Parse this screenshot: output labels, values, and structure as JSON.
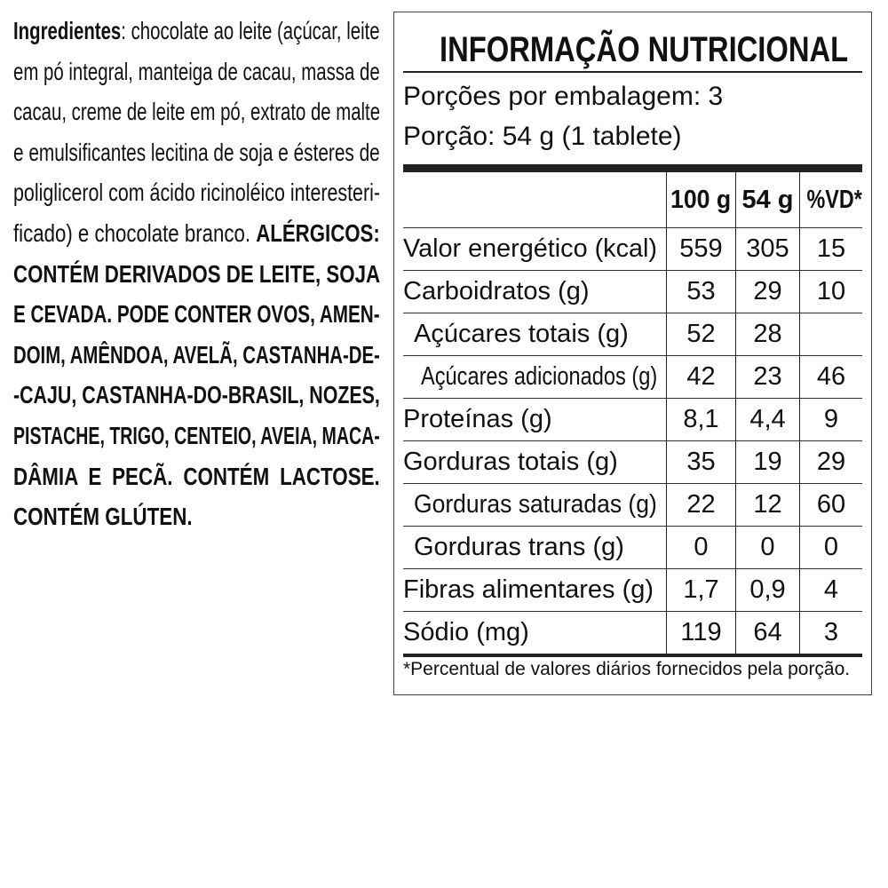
{
  "ingredients": {
    "lines": [
      [
        {
          "t": "Ingredientes",
          "b": true
        },
        {
          "t": ": chocolate ao leite (açúcar, leite",
          "b": false
        }
      ],
      [
        {
          "t": "em pó integral, manteiga de cacau, massa de",
          "b": false
        }
      ],
      [
        {
          "t": "cacau, creme de leite em pó, extrato de malte",
          "b": false
        }
      ],
      [
        {
          "t": "e emulsificantes lecitina de soja e ésteres de",
          "b": false
        }
      ],
      [
        {
          "t": "poliglicerol com ácido ricinoléico interesteri-",
          "b": false
        }
      ],
      [
        {
          "t": "ficado) e chocolate branco. ",
          "b": false
        },
        {
          "t": "ALÉRGICOS:",
          "b": true
        }
      ],
      [
        {
          "t": "CONTÉM DERIVADOS DE LEITE, SOJA",
          "b": true
        }
      ],
      [
        {
          "t": "E CEVADA. PODE CONTER OVOS, AMEN-",
          "b": true
        }
      ],
      [
        {
          "t": "DOIM, AMÊNDOA, AVELÃ, CASTANHA-DE-",
          "b": true
        }
      ],
      [
        {
          "t": "-CAJU, CASTANHA-DO-BRASIL, NOZES,",
          "b": true
        }
      ],
      [
        {
          "t": "PISTACHE, TRIGO, CENTEIO, AVEIA, MACA-",
          "b": true
        }
      ],
      [
        {
          "t": "DÂMIA E PECÃ. CONTÉM LACTOSE.",
          "b": true
        }
      ],
      [
        {
          "t": "CONTÉM GLÚTEN.",
          "b": true
        }
      ]
    ]
  },
  "nutrition": {
    "title": "INFORMAÇÃO NUTRICIONAL",
    "servings_per_package": "Porções por embalagem: 3",
    "serving_size": "Porção: 54 g (1 tablete)",
    "columns": [
      "",
      "100 g",
      "54 g",
      "%VD*"
    ],
    "rows": [
      {
        "label": "Valor energético (kcal)",
        "indent": 0,
        "v100": "559",
        "v54": "305",
        "vd": "15"
      },
      {
        "label": "Carboidratos (g)",
        "indent": 0,
        "v100": "53",
        "v54": "29",
        "vd": "10"
      },
      {
        "label": "Açúcares totais (g)",
        "indent": 1,
        "v100": "52",
        "v54": "28",
        "vd": ""
      },
      {
        "label": "Açúcares adicionados (g)",
        "indent": 2,
        "v100": "42",
        "v54": "23",
        "vd": "46"
      },
      {
        "label": "Proteínas (g)",
        "indent": 0,
        "v100": "8,1",
        "v54": "4,4",
        "vd": "9"
      },
      {
        "label": "Gorduras totais (g)",
        "indent": 0,
        "v100": "35",
        "v54": "19",
        "vd": "29"
      },
      {
        "label": "Gorduras saturadas (g)",
        "indent": 1,
        "v100": "22",
        "v54": "12",
        "vd": "60"
      },
      {
        "label": "Gorduras trans (g)",
        "indent": 1,
        "v100": "0",
        "v54": "0",
        "vd": "0"
      },
      {
        "label": "Fibras alimentares (g)",
        "indent": 0,
        "v100": "1,7",
        "v54": "0,9",
        "vd": "4"
      },
      {
        "label": "Sódio (mg)",
        "indent": 0,
        "v100": "119",
        "v54": "64",
        "vd": "3"
      }
    ],
    "footnote": "*Percentual de valores diários fornecidos pela porção."
  }
}
